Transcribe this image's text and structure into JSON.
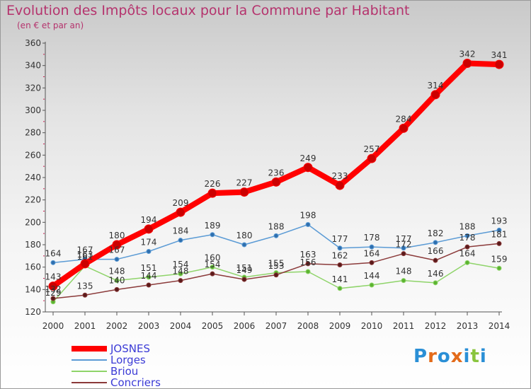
{
  "header": {
    "title": "Evolution des Impôts locaux pour la Commune par Habitant",
    "subtitle": "(en € et par an)"
  },
  "logo": {
    "text": "Proxiti",
    "colors": [
      "#2a8fd6",
      "#e36b1a",
      "#2a8fd6",
      "#e36b1a",
      "#2a8fd6",
      "#8ac53e",
      "#2a8fd6"
    ]
  },
  "chart_data": {
    "type": "line",
    "title": "Evolution des Impôts locaux pour la Commune par Habitant",
    "subtitle": "(en € et par an)",
    "xlabel": "",
    "ylabel": "",
    "categories": [
      "2000",
      "2001",
      "2002",
      "2003",
      "2004",
      "2005",
      "2006",
      "2007",
      "2008",
      "2009",
      "2010",
      "2011",
      "2012",
      "2013",
      "2014"
    ],
    "yticks": [
      120,
      140,
      160,
      180,
      200,
      220,
      240,
      260,
      280,
      300,
      320,
      340,
      360
    ],
    "ylim": [
      120,
      360
    ],
    "grid": false,
    "legend": "bottom-left",
    "series": [
      {
        "name": "JOSNES",
        "color": "#ff0000",
        "marker": "#cc0000",
        "bold": true,
        "values": [
          143,
          163,
          180,
          194,
          209,
          226,
          227,
          236,
          249,
          233,
          257,
          284,
          314,
          342,
          341
        ]
      },
      {
        "name": "Lorges",
        "color": "#5b9bd5",
        "marker": "#2f6fae",
        "bold": false,
        "values": [
          164,
          167,
          167,
          174,
          184,
          189,
          180,
          188,
          198,
          177,
          178,
          177,
          182,
          188,
          193
        ]
      },
      {
        "name": "Briou",
        "color": "#8fd46a",
        "marker": "#5bb330",
        "bold": false,
        "values": [
          129,
          161,
          148,
          151,
          154,
          160,
          151,
          155,
          156,
          141,
          144,
          148,
          146,
          164,
          159
        ]
      },
      {
        "name": "Concriers",
        "color": "#8b3a3a",
        "marker": "#5a1a1a",
        "bold": false,
        "values": [
          132,
          135,
          140,
          144,
          148,
          154,
          149,
          153,
          163,
          162,
          164,
          172,
          166,
          178,
          181
        ]
      }
    ]
  }
}
